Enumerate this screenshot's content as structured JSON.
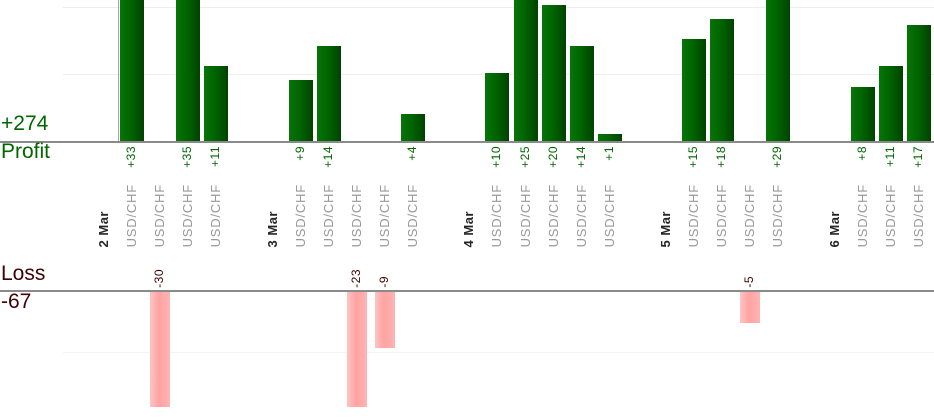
{
  "chart_data": {
    "type": "bar",
    "orientation": "vertical-grouped-by-day",
    "profit_axis": {
      "name": "Profit",
      "total_label": "+274"
    },
    "loss_axis": {
      "name": "Loss",
      "total_label": "-67"
    },
    "gridline_interval": 10,
    "legend_position": "none",
    "note_visible_clipping": "bars larger than the visible plot areas are clipped at chart edges",
    "groups": [
      {
        "date": "2 Mar",
        "trades": [
          {
            "symbol": "USD/CHF",
            "value": 33,
            "label": "+33"
          },
          {
            "symbol": "USD/CHF",
            "value": -30,
            "label": "-30"
          },
          {
            "symbol": "USD/CHF",
            "value": 35,
            "label": "+35"
          },
          {
            "symbol": "USD/CHF",
            "value": 11,
            "label": "+11"
          }
        ]
      },
      {
        "date": "3 Mar",
        "trades": [
          {
            "symbol": "USD/CHF",
            "value": 9,
            "label": "+9"
          },
          {
            "symbol": "USD/CHF",
            "value": 14,
            "label": "+14"
          },
          {
            "symbol": "USD/CHF",
            "value": -23,
            "label": "-23"
          },
          {
            "symbol": "USD/CHF",
            "value": -9,
            "label": "-9"
          },
          {
            "symbol": "USD/CHF",
            "value": 4,
            "label": "+4"
          }
        ]
      },
      {
        "date": "4 Mar",
        "trades": [
          {
            "symbol": "USD/CHF",
            "value": 10,
            "label": "+10"
          },
          {
            "symbol": "USD/CHF",
            "value": 25,
            "label": "+25"
          },
          {
            "symbol": "USD/CHF",
            "value": 20,
            "label": "+20"
          },
          {
            "symbol": "USD/CHF",
            "value": 14,
            "label": "+14"
          },
          {
            "symbol": "USD/CHF",
            "value": 1,
            "label": "+1"
          }
        ]
      },
      {
        "date": "5 Mar",
        "trades": [
          {
            "symbol": "USD/CHF",
            "value": 15,
            "label": "+15"
          },
          {
            "symbol": "USD/CHF",
            "value": 18,
            "label": "+18"
          },
          {
            "symbol": "USD/CHF",
            "value": -5,
            "label": "-5"
          },
          {
            "symbol": "USD/CHF",
            "value": 29,
            "label": "+29"
          }
        ]
      },
      {
        "date": "6 Mar",
        "trades": [
          {
            "symbol": "USD/CHF",
            "value": 8,
            "label": "+8"
          },
          {
            "symbol": "USD/CHF",
            "value": 11,
            "label": "+11"
          },
          {
            "symbol": "USD/CHF",
            "value": 17,
            "label": "+17"
          }
        ]
      }
    ]
  },
  "colors": {
    "profit_text": "#006600",
    "loss_text": "#3d0202",
    "profit_bar_light": "#077507",
    "profit_bar_mid": "#006200",
    "profit_bar_dark": "#004200",
    "loss_bar_light": "#ffc4c4",
    "loss_bar_mid": "#ffa2a2",
    "loss_bar_edge": "#ffb4b4",
    "date_text": "#262626",
    "symbol_text": "#999999",
    "baseline": "#8a8a8a",
    "axis_line": "#a6a6a6",
    "gridline_profit": "#ededed",
    "gridline_loss": "#f3f3f3"
  }
}
